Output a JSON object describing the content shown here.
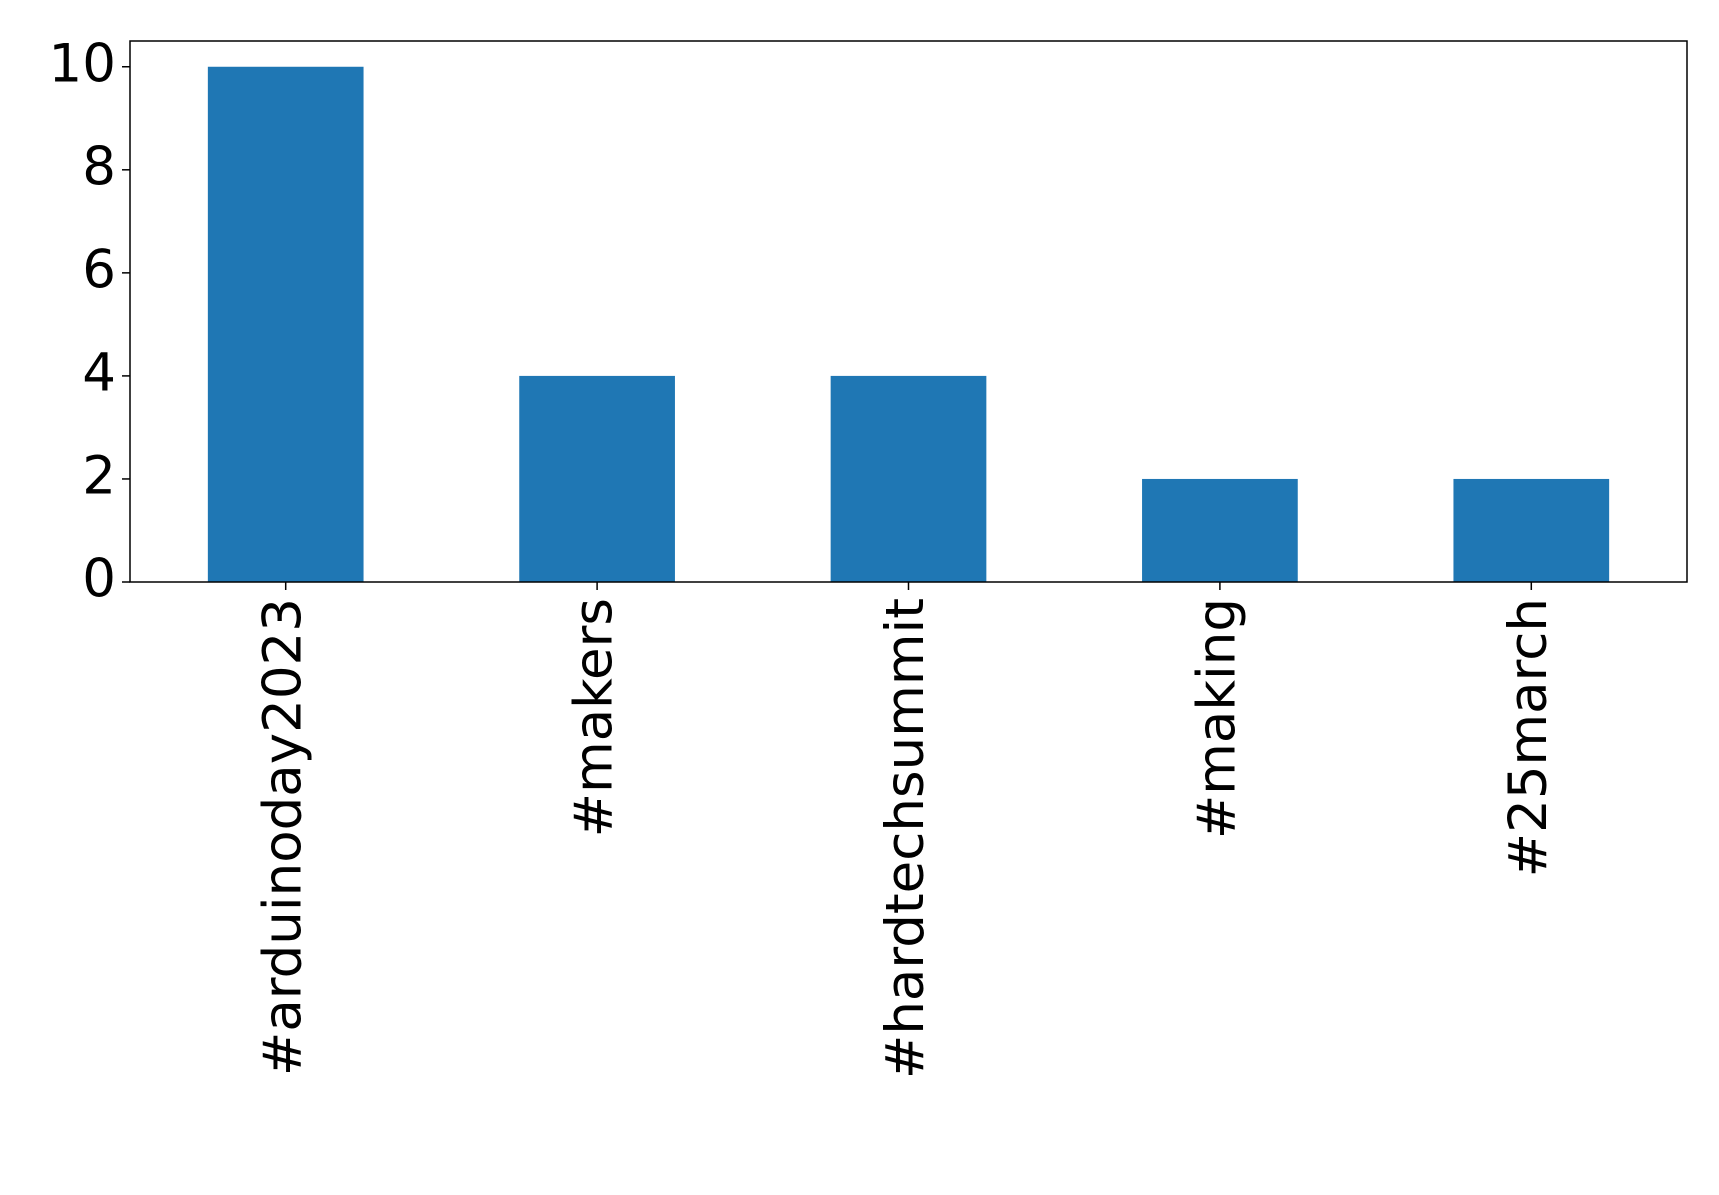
{
  "chart_data": {
    "type": "bar",
    "categories": [
      "#arduinoday2023",
      "#makers",
      "#hardtechsummit",
      "#making",
      "#25march"
    ],
    "values": [
      10,
      4,
      4,
      2,
      2
    ],
    "color": "#1f77b4",
    "ylim": [
      0,
      10.5
    ],
    "yticks": [
      0,
      2,
      4,
      6,
      8,
      10
    ],
    "grid": false
  }
}
